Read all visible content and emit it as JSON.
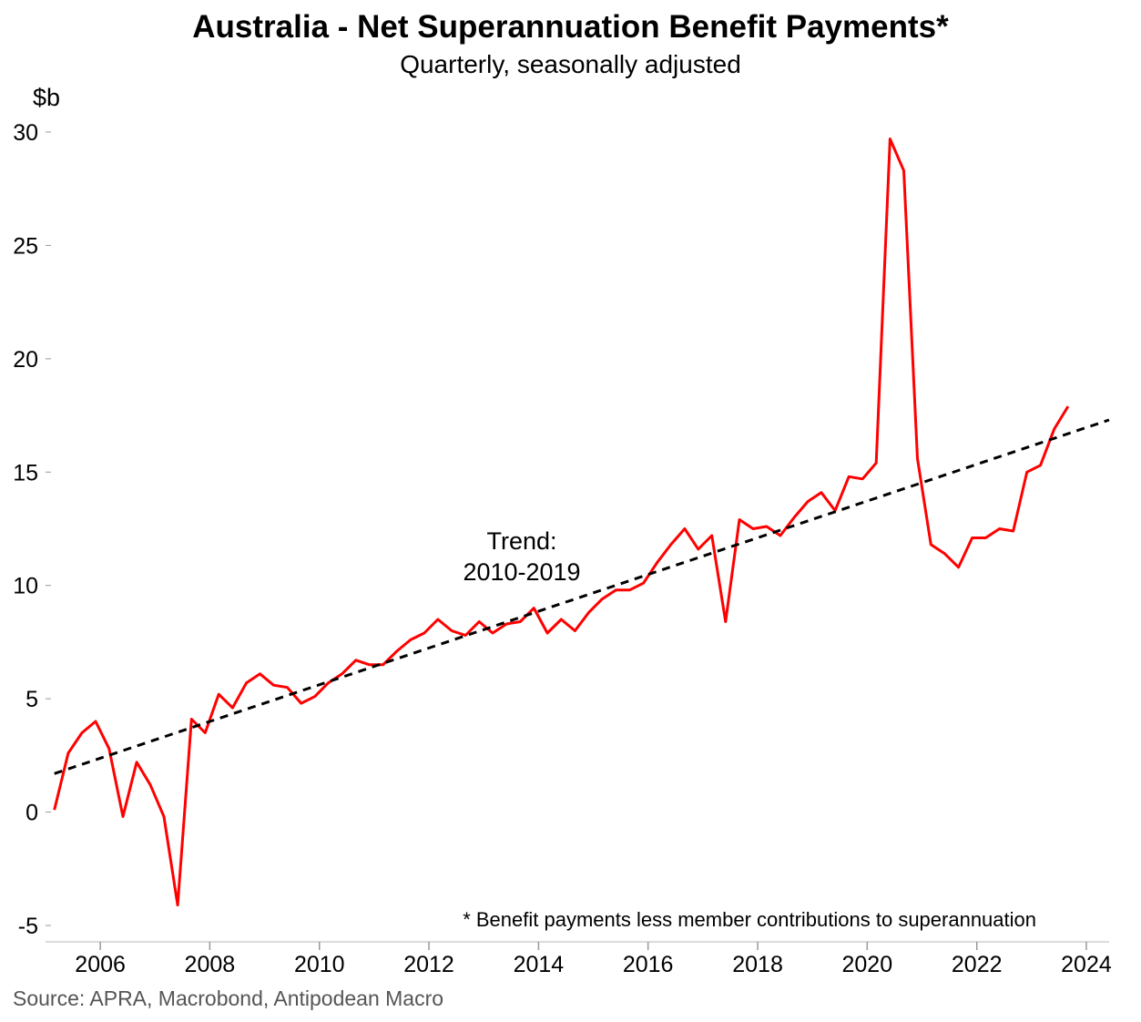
{
  "chart_data": {
    "type": "line",
    "title": "Australia - Net Superannuation Benefit Payments*",
    "subtitle": "Quarterly, seasonally adjusted",
    "ylabel": "$b",
    "xlabel": "",
    "ylim": [
      -5,
      30
    ],
    "xlim": [
      "2005-01-01",
      "2024-06-01"
    ],
    "yticks": [
      -5,
      0,
      5,
      10,
      15,
      20,
      25,
      30
    ],
    "xticks": [
      "2006",
      "2008",
      "2010",
      "2012",
      "2014",
      "2016",
      "2018",
      "2020",
      "2022",
      "2024"
    ],
    "grid": false,
    "series": [
      {
        "color": "#ff0000",
        "style": "solid",
        "x": [
          "2005-03",
          "2005-06",
          "2005-09",
          "2005-12",
          "2006-03",
          "2006-06",
          "2006-09",
          "2006-12",
          "2007-03",
          "2007-06",
          "2007-09",
          "2007-12",
          "2008-03",
          "2008-06",
          "2008-09",
          "2008-12",
          "2009-03",
          "2009-06",
          "2009-09",
          "2009-12",
          "2010-03",
          "2010-06",
          "2010-09",
          "2010-12",
          "2011-03",
          "2011-06",
          "2011-09",
          "2011-12",
          "2012-03",
          "2012-06",
          "2012-09",
          "2012-12",
          "2013-03",
          "2013-06",
          "2013-09",
          "2013-12",
          "2014-03",
          "2014-06",
          "2014-09",
          "2014-12",
          "2015-03",
          "2015-06",
          "2015-09",
          "2015-12",
          "2016-03",
          "2016-06",
          "2016-09",
          "2016-12",
          "2017-03",
          "2017-06",
          "2017-09",
          "2017-12",
          "2018-03",
          "2018-06",
          "2018-09",
          "2018-12",
          "2019-03",
          "2019-06",
          "2019-09",
          "2019-12",
          "2020-03",
          "2020-06",
          "2020-09",
          "2020-12",
          "2021-03",
          "2021-06",
          "2021-09",
          "2021-12",
          "2022-03",
          "2022-06",
          "2022-09",
          "2022-12",
          "2023-03",
          "2023-06",
          "2023-09"
        ],
        "values": [
          0.1,
          2.6,
          3.5,
          4.0,
          2.8,
          -0.2,
          2.2,
          1.2,
          -0.2,
          -4.1,
          4.1,
          3.5,
          5.2,
          4.6,
          5.7,
          6.1,
          5.6,
          5.5,
          4.8,
          5.1,
          5.7,
          6.1,
          6.7,
          6.5,
          6.5,
          7.1,
          7.6,
          7.9,
          8.5,
          8.0,
          7.8,
          8.4,
          7.9,
          8.3,
          8.4,
          9.0,
          7.9,
          8.5,
          8.0,
          8.8,
          9.4,
          9.8,
          9.8,
          10.1,
          11.0,
          11.8,
          12.5,
          11.6,
          12.2,
          8.4,
          12.9,
          12.5,
          12.6,
          12.2,
          13.0,
          13.7,
          14.1,
          13.3,
          14.8,
          14.7,
          15.4,
          29.7,
          28.3,
          15.6,
          11.8,
          11.4,
          10.8,
          12.1,
          12.1,
          12.5,
          12.4,
          15.0,
          15.3,
          16.9,
          17.9
        ]
      },
      {
        "color": "#000000",
        "style": "dashed",
        "x": [
          "2005-03",
          "2024-06"
        ],
        "values": [
          1.7,
          17.3
        ]
      }
    ],
    "annotations": [
      "Trend:",
      "2010-2019"
    ],
    "footnote": "* Benefit payments less member contributions to superannuation"
  },
  "source": "Source: APRA, Macrobond, Antipodean Macro"
}
